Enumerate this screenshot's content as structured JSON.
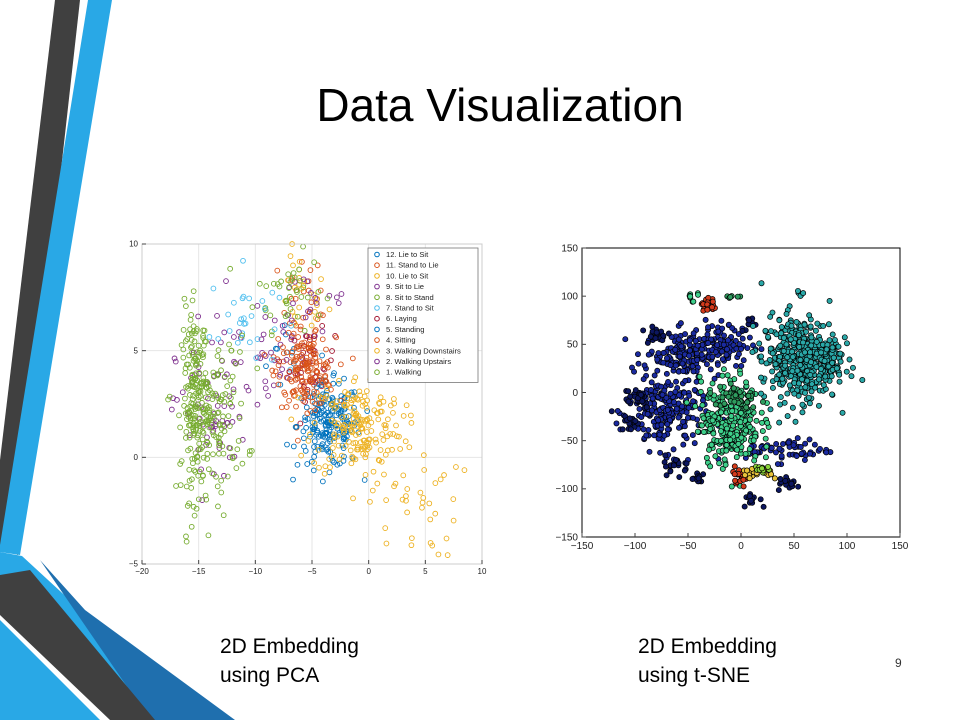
{
  "slide": {
    "title": "Data Visualization",
    "page_number": "9",
    "captions": [
      {
        "line1": "2D Embedding",
        "line2": "using PCA"
      },
      {
        "line1": "2D Embedding",
        "line2": "using t-SNE"
      }
    ],
    "colors": {
      "decor_dark": "#404040",
      "decor_blue": "#29a8e6",
      "decor_navy": "#1f6fae"
    }
  },
  "chart_data": [
    {
      "type": "scatter",
      "title": "",
      "xlabel": "",
      "ylabel": "",
      "xlim": [
        -20,
        10
      ],
      "ylim": [
        -5,
        10
      ],
      "xticks": [
        -20,
        -15,
        -10,
        -5,
        0,
        5,
        10
      ],
      "yticks": [
        -5,
        0,
        5,
        10
      ],
      "grid": true,
      "marker": "open-circle",
      "legend_position": "top-right",
      "series": [
        {
          "name": "12. Lie to Sit",
          "color": "#0072bd",
          "clusters": [
            {
              "cx": -7,
              "cy": 4.8,
              "sx": 1.0,
              "sy": 1.0,
              "n": 10
            }
          ]
        },
        {
          "name": "11. Stand to Lie",
          "color": "#d95319",
          "clusters": [
            {
              "cx": -6,
              "cy": 4.8,
              "sx": 1.2,
              "sy": 1.3,
              "n": 40
            },
            {
              "cx": -6,
              "cy": 7.5,
              "sx": 1.0,
              "sy": 1.0,
              "n": 20
            }
          ]
        },
        {
          "name": "10. Lie to Sit",
          "color": "#edb120",
          "clusters": [
            {
              "cx": -6,
              "cy": 7.5,
              "sx": 1.2,
              "sy": 1.0,
              "n": 25
            }
          ]
        },
        {
          "name": "9. Sit to Lie",
          "color": "#7e2f8e",
          "clusters": [
            {
              "cx": -10,
              "cy": 5,
              "sx": 2.2,
              "sy": 1.5,
              "n": 40
            },
            {
              "cx": -5,
              "cy": 7,
              "sx": 2.0,
              "sy": 1.2,
              "n": 20
            }
          ]
        },
        {
          "name": "8. Sit to Stand",
          "color": "#77ac30",
          "clusters": [
            {
              "cx": -7,
              "cy": 7.8,
              "sx": 1.5,
              "sy": 0.9,
              "n": 40
            }
          ]
        },
        {
          "name": "7. Stand to Sit",
          "color": "#4dbeee",
          "clusters": [
            {
              "cx": -11,
              "cy": 6.5,
              "sx": 1.5,
              "sy": 1.2,
              "n": 30
            }
          ]
        },
        {
          "name": "6. Laying",
          "color": "#a2142f",
          "clusters": [
            {
              "cx": -5,
              "cy": 4.3,
              "sx": 1.0,
              "sy": 0.8,
              "n": 40
            }
          ]
        },
        {
          "name": "5. Standing",
          "color": "#0072bd",
          "clusters": [
            {
              "cx": -3.5,
              "cy": 1.5,
              "sx": 1.4,
              "sy": 1.0,
              "n": 200
            }
          ]
        },
        {
          "name": "4. Sitting",
          "color": "#d95319",
          "clusters": [
            {
              "cx": -5.5,
              "cy": 4,
              "sx": 1.3,
              "sy": 0.8,
              "n": 130
            }
          ]
        },
        {
          "name": "3. Walking Downstairs",
          "color": "#edb120",
          "clusters": [
            {
              "cx": -1,
              "cy": 1.5,
              "sx": 2.0,
              "sy": 1.2,
              "n": 180
            },
            {
              "cx": 4,
              "cy": -2,
              "sx": 2.0,
              "sy": 1.4,
              "n": 40
            }
          ]
        },
        {
          "name": "2. Walking Upstairs",
          "color": "#7e2f8e",
          "clusters": [
            {
              "cx": -14,
              "cy": 2,
              "sx": 1.5,
              "sy": 1.8,
              "n": 60
            }
          ]
        },
        {
          "name": "1. Walking",
          "color": "#77ac30",
          "clusters": [
            {
              "cx": -13.5,
              "cy": 2,
              "sx": 1.4,
              "sy": 1.8,
              "n": 130
            },
            {
              "cx": -15.3,
              "cy": 2.5,
              "sx": 0.6,
              "sy": 2.2,
              "n": 180
            }
          ]
        }
      ]
    },
    {
      "type": "scatter",
      "title": "",
      "xlabel": "",
      "ylabel": "",
      "xlim": [
        -150,
        150
      ],
      "ylim": [
        -150,
        150
      ],
      "xticks": [
        -150,
        -100,
        -50,
        0,
        50,
        100,
        150
      ],
      "yticks": [
        -150,
        -100,
        -50,
        0,
        50,
        100,
        150
      ],
      "grid": false,
      "marker": "filled-circle-black-edge",
      "series": [
        {
          "color": "#1a2aa0",
          "clusters": [
            {
              "cx": -70,
              "cy": -20,
              "sx": 18,
              "sy": 20,
              "n": 220
            },
            {
              "cx": -55,
              "cy": 40,
              "sx": 18,
              "sy": 12,
              "n": 140
            },
            {
              "cx": -20,
              "cy": 50,
              "sx": 15,
              "sy": 12,
              "n": 90
            },
            {
              "cx": 45,
              "cy": -60,
              "sx": 20,
              "sy": 6,
              "n": 60
            }
          ]
        },
        {
          "color": "#0c1660",
          "clusters": [
            {
              "cx": -100,
              "cy": -5,
              "sx": 8,
              "sy": 6,
              "n": 30
            },
            {
              "cx": -80,
              "cy": 60,
              "sx": 7,
              "sy": 5,
              "n": 20
            },
            {
              "cx": -60,
              "cy": -75,
              "sx": 6,
              "sy": 5,
              "n": 20
            },
            {
              "cx": -40,
              "cy": -90,
              "sx": 4,
              "sy": 4,
              "n": 12
            },
            {
              "cx": 10,
              "cy": -110,
              "sx": 4,
              "sy": 4,
              "n": 12
            },
            {
              "cx": 45,
              "cy": -95,
              "sx": 5,
              "sy": 4,
              "n": 15
            },
            {
              "cx": -105,
              "cy": -30,
              "sx": 5,
              "sy": 5,
              "n": 15
            },
            {
              "cx": 10,
              "cy": 70,
              "sx": 5,
              "sy": 4,
              "n": 10
            }
          ]
        },
        {
          "color": "#2aa8a8",
          "clusters": [
            {
              "cx": 55,
              "cy": 35,
              "sx": 18,
              "sy": 22,
              "n": 420
            },
            {
              "cx": 80,
              "cy": 35,
              "sx": 8,
              "sy": 10,
              "n": 60
            },
            {
              "cx": 55,
              "cy": 100,
              "sx": 3,
              "sy": 3,
              "n": 6
            }
          ]
        },
        {
          "color": "#3dcf8a",
          "clusters": [
            {
              "cx": -10,
              "cy": -30,
              "sx": 14,
              "sy": 22,
              "n": 280
            },
            {
              "cx": -45,
              "cy": 100,
              "sx": 3,
              "sy": 3,
              "n": 8
            }
          ]
        },
        {
          "color": "#2e9b5e",
          "clusters": [
            {
              "cx": -5,
              "cy": -5,
              "sx": 10,
              "sy": 8,
              "n": 40
            },
            {
              "cx": -8,
              "cy": 100,
              "sx": 3,
              "sy": 2,
              "n": 6
            }
          ]
        },
        {
          "color": "#d43b1c",
          "clusters": [
            {
              "cx": -30,
              "cy": 90,
              "sx": 4,
              "sy": 4,
              "n": 25
            },
            {
              "cx": 0,
              "cy": -85,
              "sx": 4,
              "sy": 4,
              "n": 25
            }
          ]
        },
        {
          "color": "#e8c23a",
          "clusters": [
            {
              "cx": 8,
              "cy": -85,
              "sx": 4,
              "sy": 3,
              "n": 12
            },
            {
              "cx": 25,
              "cy": -85,
              "sx": 3,
              "sy": 3,
              "n": 8
            }
          ]
        },
        {
          "color": "#8ad43a",
          "clusters": [
            {
              "cx": 20,
              "cy": -80,
              "sx": 4,
              "sy": 3,
              "n": 12
            }
          ]
        }
      ]
    }
  ]
}
